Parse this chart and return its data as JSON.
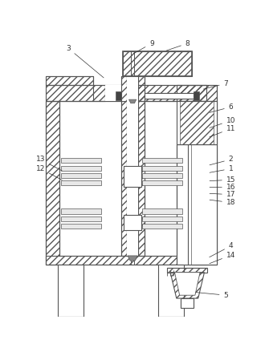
{
  "bg_color": "#ffffff",
  "line_color": "#555555",
  "figure_size": [
    3.35,
    4.44
  ],
  "dpi": 100
}
